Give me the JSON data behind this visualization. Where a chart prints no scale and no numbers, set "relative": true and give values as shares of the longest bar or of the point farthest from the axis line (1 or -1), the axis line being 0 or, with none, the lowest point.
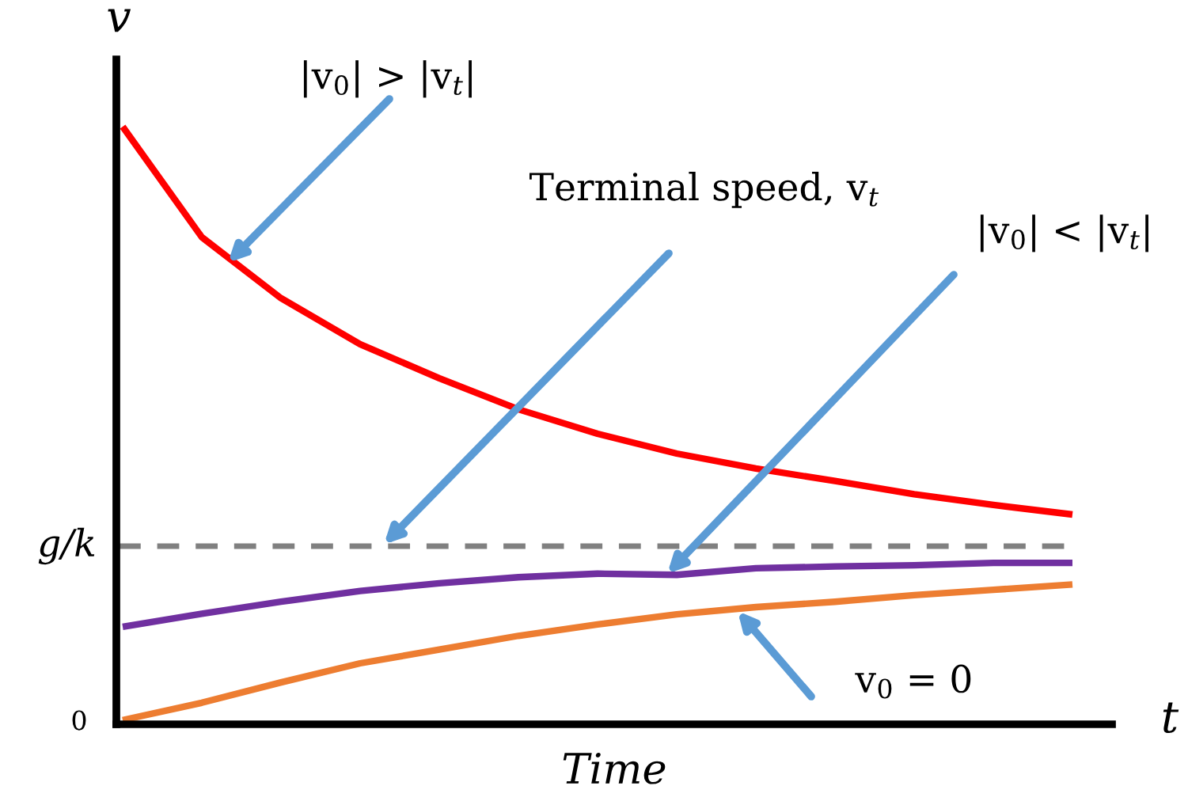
{
  "chart_data": {
    "type": "line",
    "relative": true,
    "xlabel": "Time",
    "ylabel": "v",
    "categories": [
      null,
      null,
      null,
      null,
      null,
      null,
      null,
      null,
      null,
      null,
      null,
      null,
      null
    ],
    "series": [
      {
        "color": "#ff0000",
        "values": [
          1.0,
          0.815,
          0.713,
          0.636,
          0.579,
          0.527,
          0.486,
          0.453,
          0.428,
          0.407,
          0.385,
          0.367,
          0.351
        ]
      },
      {
        "color": "#7030a0",
        "values": [
          0.163,
          0.185,
          0.205,
          0.223,
          0.236,
          0.246,
          0.252,
          0.25,
          0.261,
          0.264,
          0.266,
          0.27,
          0.27
        ]
      },
      {
        "color": "#ed7d31",
        "values": [
          0.007,
          0.036,
          0.07,
          0.102,
          0.125,
          0.148,
          0.167,
          0.184,
          0.196,
          0.205,
          0.216,
          0.225,
          0.234
        ]
      }
    ],
    "ref_lines": [
      {
        "axis": "y",
        "value": 0.298,
        "label": "g/k",
        "color": "#808080",
        "line_style": "dashed"
      }
    ],
    "annotations": [
      "|v$_{0}$| > |v$_{t}$|",
      "Terminal speed, v$_{t}$",
      "|v$_{0}$| < |v$_{t}$|",
      "v$_{0}$ = 0",
      "0",
      "t"
    ],
    "marker": "none",
    "line_style": "solid"
  }
}
